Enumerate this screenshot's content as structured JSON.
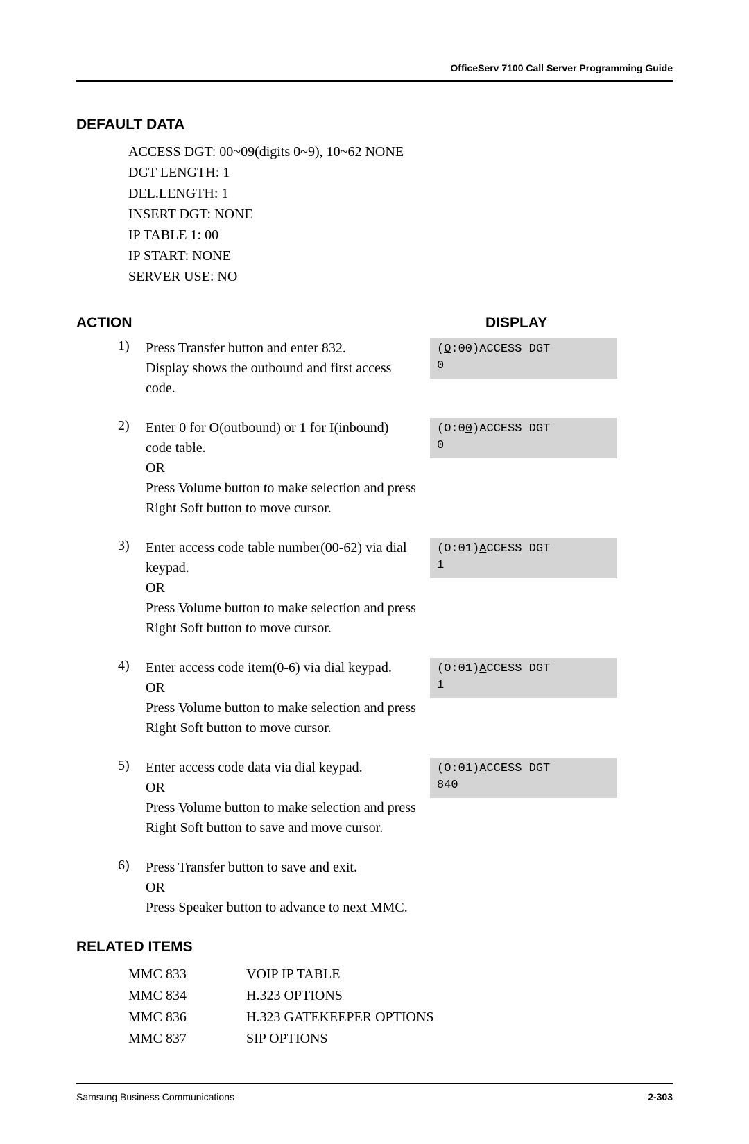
{
  "header": {
    "right_text": "OfficeServ 7100 Call Server Programming Guide"
  },
  "default_data": {
    "heading": "DEFAULT DATA",
    "lines": [
      "ACCESS DGT: 00~09(digits 0~9), 10~62 NONE",
      "DGT LENGTH: 1",
      "DEL.LENGTH: 1",
      "INSERT DGT: NONE",
      "IP TABLE 1: 00",
      "IP START: NONE",
      "SERVER USE: NO"
    ]
  },
  "action_display": {
    "action_heading": "ACTION",
    "display_heading": "DISPLAY"
  },
  "steps": [
    {
      "num": "1)",
      "text": "Press Transfer button and enter 832.\nDisplay shows the outbound and first access code.",
      "display": {
        "prefix": "(",
        "u": "O",
        "after_u": ":00)ACCESS DGT",
        "line2": "0"
      }
    },
    {
      "num": "2)",
      "text": "Enter 0 for O(outbound) or 1 for I(inbound) code table.\nOR\nPress Volume button to make selection and press Right Soft button to move cursor.",
      "display": {
        "prefix": "(O:0",
        "u": "0",
        "after_u": ")ACCESS DGT",
        "line2": "0"
      }
    },
    {
      "num": "3)",
      "text": "Enter access code table number(00-62) via dial keypad.\nOR\nPress Volume button to make selection and press Right Soft button to move cursor.",
      "display": {
        "prefix": "(O:01)",
        "u": "A",
        "after_u": "CCESS DGT",
        "line2": "1"
      }
    },
    {
      "num": "4)",
      "text": "Enter access code item(0-6) via dial keypad.\nOR\nPress Volume button to make selection and press Right Soft button to move cursor.",
      "display": {
        "prefix": "(O:01)",
        "u": "A",
        "after_u": "CCESS DGT",
        "line2": "1"
      }
    },
    {
      "num": "5)",
      "text": "Enter access code data via dial keypad.\nOR\nPress Volume button to make selection and press Right Soft button to save and move cursor.",
      "display": {
        "prefix": "(O:01)",
        "u": "A",
        "after_u": "CCESS DGT",
        "line2": "840"
      }
    },
    {
      "num": "6)",
      "text": "Press Transfer button to save and exit.\nOR\nPress Speaker button to advance to next MMC.",
      "display": null
    }
  ],
  "related": {
    "heading": "RELATED ITEMS",
    "rows": [
      {
        "code": "MMC 833",
        "desc": "VOIP IP TABLE"
      },
      {
        "code": "MMC 834",
        "desc": "H.323 OPTIONS"
      },
      {
        "code": "MMC 836",
        "desc": "H.323 GATEKEEPER OPTIONS"
      },
      {
        "code": "MMC 837",
        "desc": "SIP OPTIONS"
      }
    ]
  },
  "footer": {
    "left": "Samsung Business Communications",
    "right": "2-303"
  },
  "colors": {
    "display_bg": "#d4d4d4",
    "rule": "#000000",
    "page_bg": "#ffffff",
    "text": "#000000"
  },
  "typography": {
    "body_font": "Times New Roman",
    "heading_font": "Arial",
    "mono_font": "Courier New",
    "body_size_pt": 15,
    "heading_size_pt": 16,
    "header_size_pt": 10.5,
    "footer_size_pt": 10.5
  }
}
